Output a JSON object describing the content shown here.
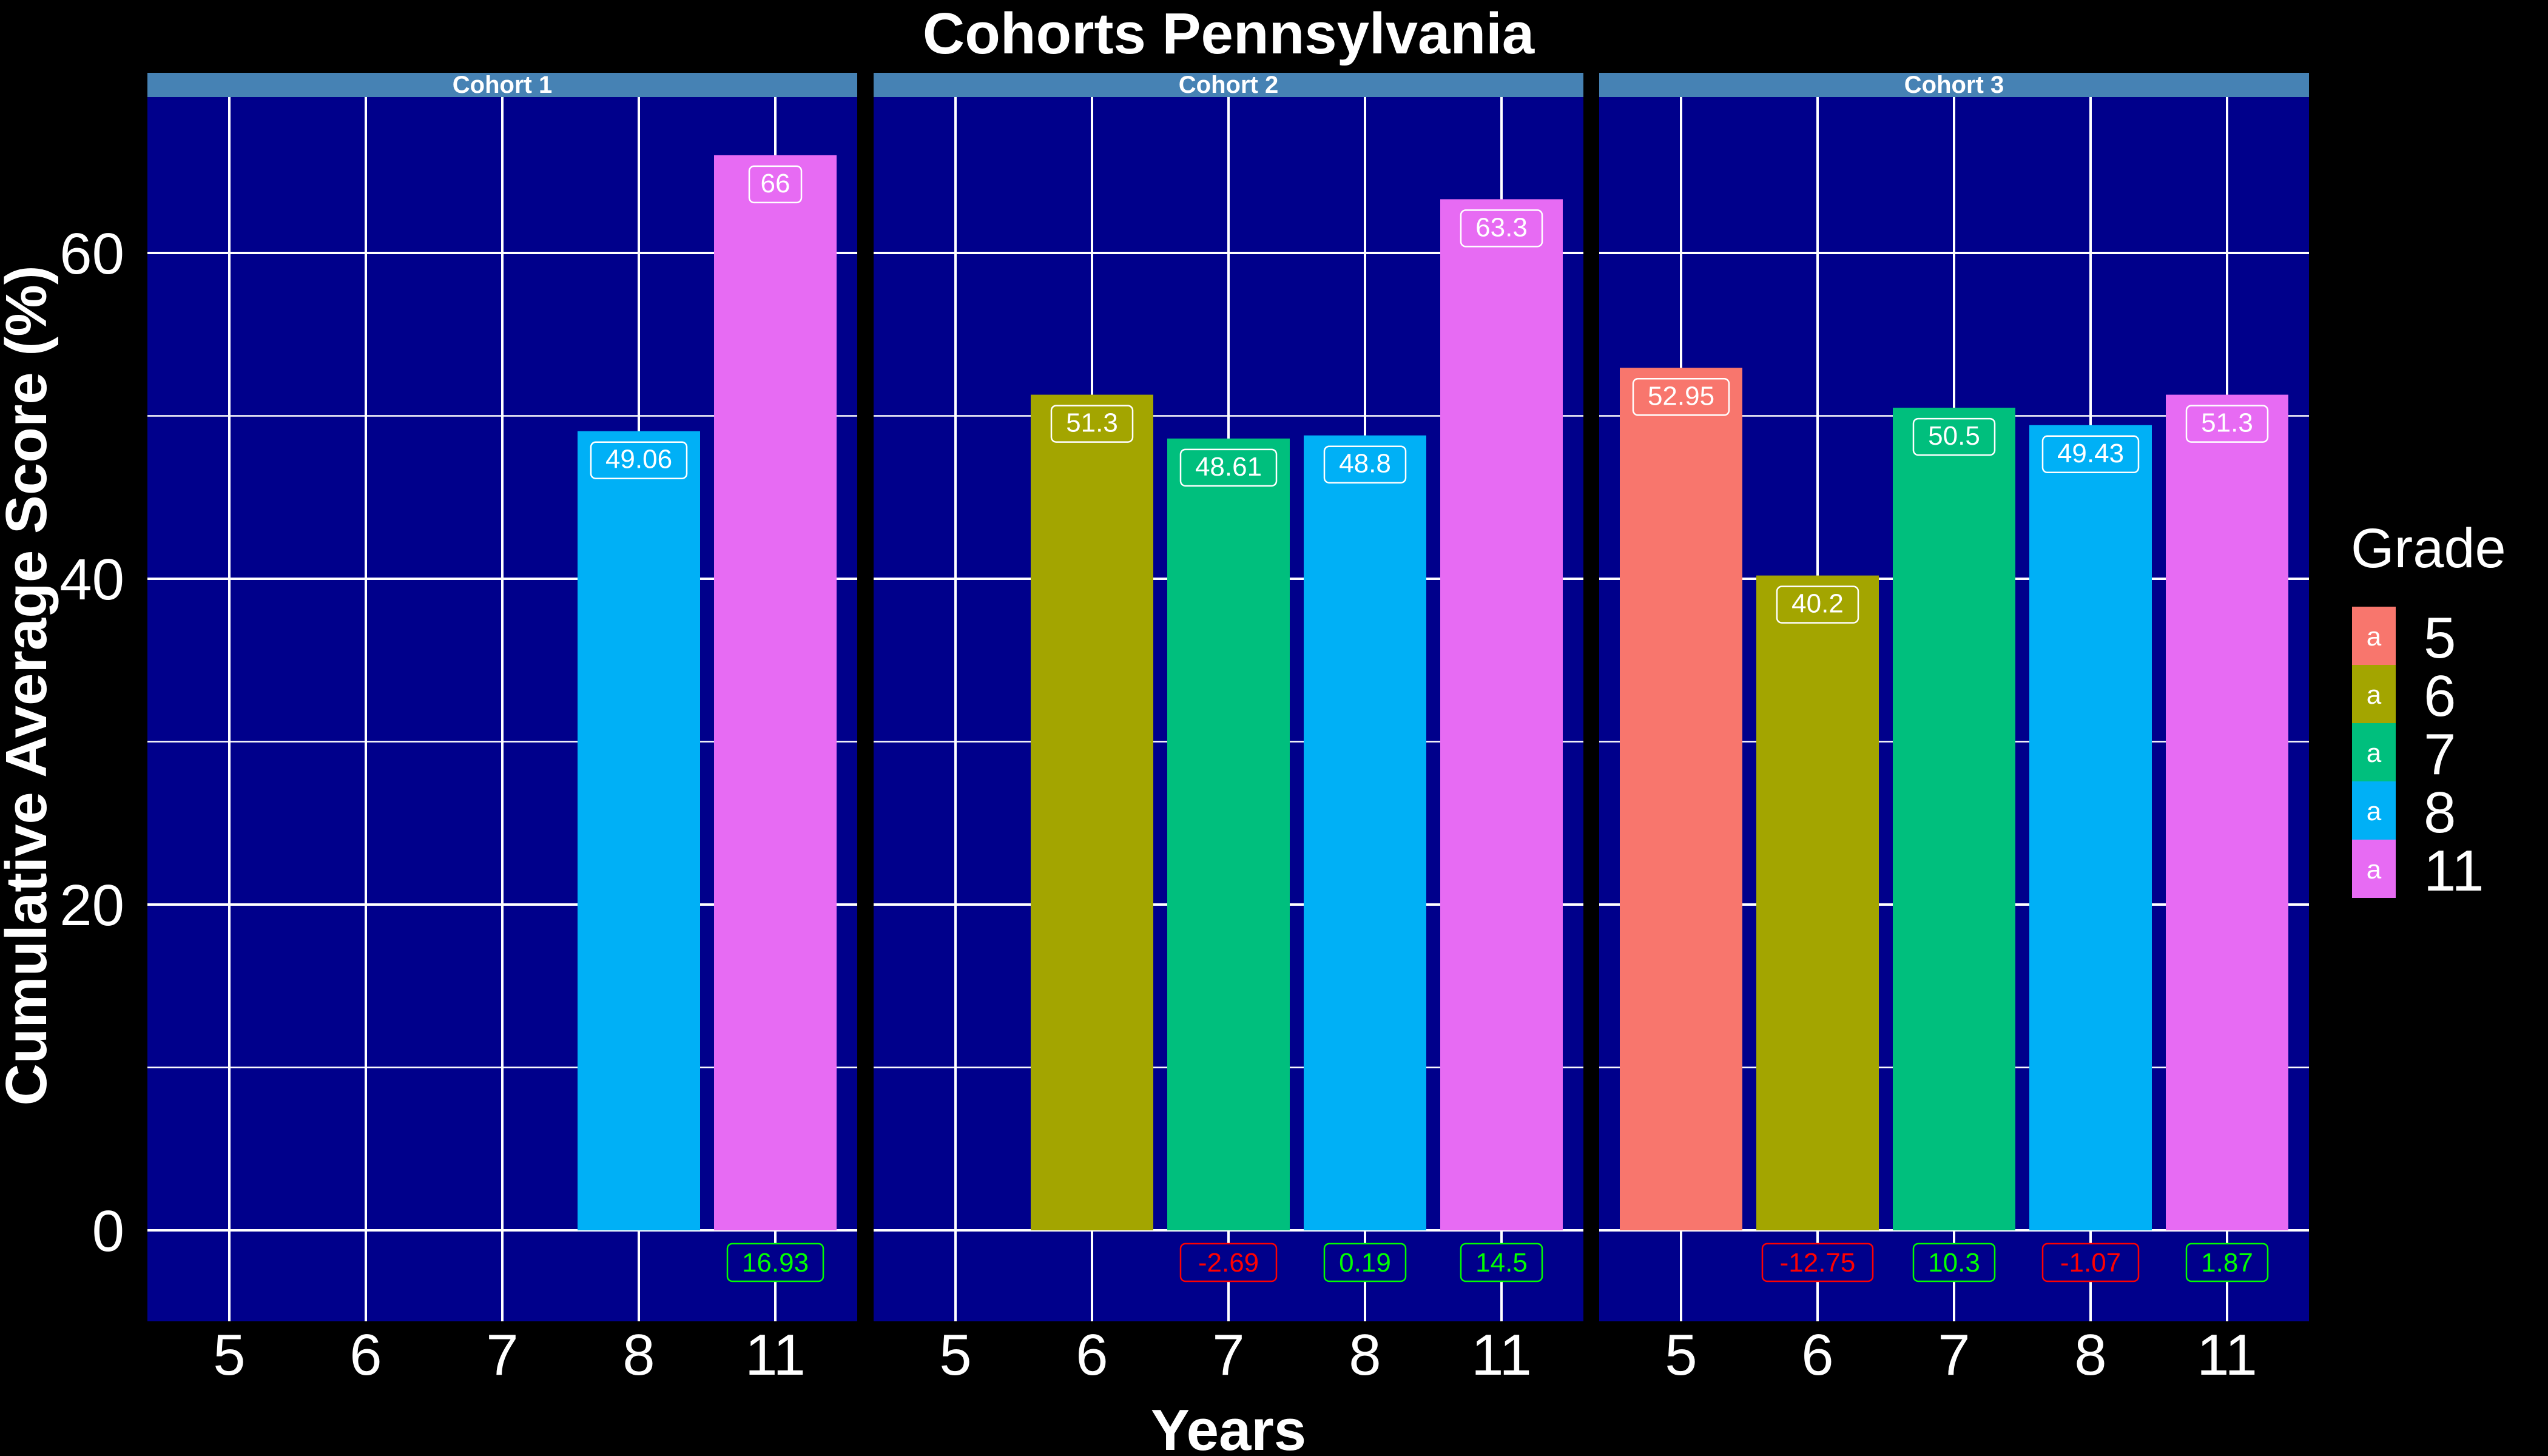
{
  "chart_data": {
    "type": "bar",
    "title": "Cohorts Pennsylvania",
    "xlabel": "Years",
    "ylabel": "Cumulative Average Score (%)",
    "ylim": [
      -11,
      70
    ],
    "y_ticks": [
      0,
      20,
      40,
      60
    ],
    "categories": [
      "5",
      "6",
      "7",
      "8",
      "11"
    ],
    "grid": true,
    "legend": {
      "title": "Grade",
      "placement": "right",
      "key_glyph": "a",
      "entries": [
        {
          "label": "5",
          "color": "#F8766D"
        },
        {
          "label": "6",
          "color": "#A3A500"
        },
        {
          "label": "7",
          "color": "#00BF7D"
        },
        {
          "label": "8",
          "color": "#00B0F6"
        },
        {
          "label": "11",
          "color": "#E76BF3"
        }
      ]
    },
    "colors": {
      "background": "#000000",
      "panel": "#00008B",
      "strip": "#4682B4",
      "grid": "#FFFFFF",
      "positive_change": "#00FF00",
      "negative_change": "#FF0000"
    },
    "panels": [
      {
        "name": "Cohort 1",
        "bars": [
          {
            "category": "8",
            "value": 49.06,
            "label": "49.06"
          },
          {
            "category": "11",
            "value": 66,
            "label": "66"
          }
        ],
        "changes": [
          {
            "category": "11",
            "value": 16.93,
            "label": "16.93"
          }
        ]
      },
      {
        "name": "Cohort 2",
        "bars": [
          {
            "category": "6",
            "value": 51.3,
            "label": "51.3"
          },
          {
            "category": "7",
            "value": 48.61,
            "label": "48.61"
          },
          {
            "category": "8",
            "value": 48.8,
            "label": "48.8"
          },
          {
            "category": "11",
            "value": 63.3,
            "label": "63.3"
          }
        ],
        "changes": [
          {
            "category": "7",
            "value": -2.69,
            "label": "-2.69"
          },
          {
            "category": "8",
            "value": 0.19,
            "label": "0.19"
          },
          {
            "category": "11",
            "value": 14.5,
            "label": "14.5"
          }
        ]
      },
      {
        "name": "Cohort 3",
        "bars": [
          {
            "category": "5",
            "value": 52.95,
            "label": "52.95"
          },
          {
            "category": "6",
            "value": 40.2,
            "label": "40.2"
          },
          {
            "category": "7",
            "value": 50.5,
            "label": "50.5"
          },
          {
            "category": "8",
            "value": 49.43,
            "label": "49.43"
          },
          {
            "category": "11",
            "value": 51.3,
            "label": "51.3"
          }
        ],
        "changes": [
          {
            "category": "6",
            "value": -12.75,
            "label": "-12.75"
          },
          {
            "category": "7",
            "value": 10.3,
            "label": "10.3"
          },
          {
            "category": "8",
            "value": -1.07,
            "label": "-1.07"
          },
          {
            "category": "11",
            "value": 1.87,
            "label": "1.87"
          }
        ]
      }
    ]
  }
}
